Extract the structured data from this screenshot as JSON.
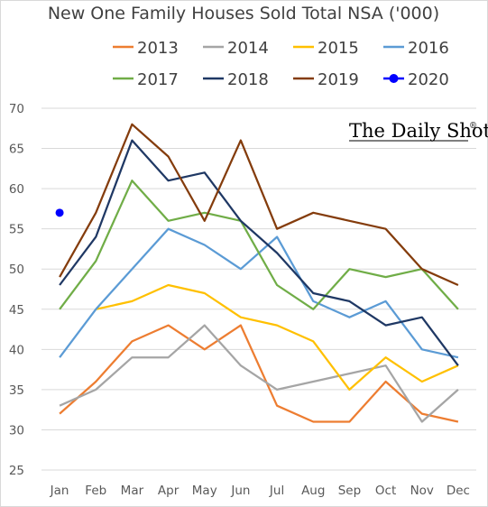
{
  "chart_data": {
    "type": "line",
    "title": "New One Family Houses Sold Total NSA ('000)",
    "categories": [
      "Jan",
      "Feb",
      "Mar",
      "Apr",
      "May",
      "Jun",
      "Jul",
      "Aug",
      "Sep",
      "Oct",
      "Nov",
      "Dec"
    ],
    "ylim": [
      25,
      70
    ],
    "yticks": [
      25,
      30,
      35,
      40,
      45,
      50,
      55,
      60,
      65,
      70
    ],
    "grid": "horizontal",
    "legend_position": "top",
    "watermark": "The Daily Shot",
    "watermark_mark": "®",
    "series": [
      {
        "name": "2013",
        "color": "#ED7D31",
        "values": [
          32,
          36,
          41,
          43,
          40,
          43,
          33,
          31,
          31,
          36,
          32,
          31
        ]
      },
      {
        "name": "2014",
        "color": "#A5A5A5",
        "values": [
          33,
          35,
          39,
          39,
          43,
          38,
          35,
          36,
          37,
          38,
          31,
          35
        ]
      },
      {
        "name": "2015",
        "color": "#FFC000",
        "values": [
          null,
          45,
          46,
          48,
          47,
          44,
          43,
          41,
          35,
          39,
          36,
          38
        ]
      },
      {
        "name": "2016",
        "color": "#5B9BD5",
        "values": [
          39,
          45,
          50,
          55,
          53,
          50,
          54,
          46,
          44,
          46,
          40,
          39
        ]
      },
      {
        "name": "2017",
        "color": "#70AD47",
        "values": [
          45,
          51,
          61,
          56,
          57,
          56,
          48,
          45,
          50,
          49,
          50,
          45
        ]
      },
      {
        "name": "2018",
        "color": "#1F3864",
        "values": [
          48,
          54,
          66,
          61,
          62,
          56,
          52,
          47,
          46,
          43,
          44,
          38
        ]
      },
      {
        "name": "2019",
        "color": "#843C0C",
        "values": [
          49,
          57,
          68,
          64,
          56,
          66,
          55,
          57,
          56,
          55,
          50,
          48
        ]
      },
      {
        "name": "2020",
        "color": "#0000FF",
        "values": [
          57,
          null,
          null,
          null,
          null,
          null,
          null,
          null,
          null,
          null,
          null,
          null
        ],
        "marker": true
      }
    ]
  }
}
